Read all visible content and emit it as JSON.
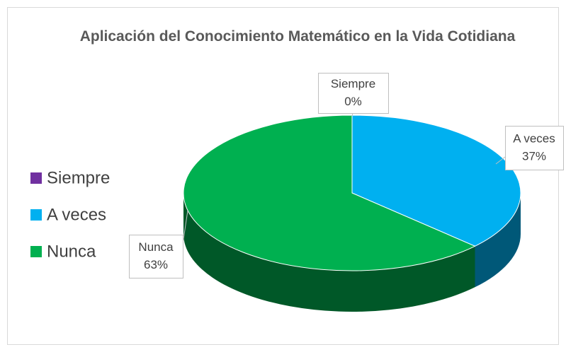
{
  "chart_data": {
    "type": "pie",
    "title": "Aplicación del Conocimiento Matemático en la Vida Cotidiana",
    "categories": [
      "Siempre",
      "A veces",
      "Nunca"
    ],
    "values": [
      0,
      37,
      63
    ],
    "value_labels": [
      "0%",
      "37%",
      "63%"
    ],
    "colors": [
      "#7030a0",
      "#00b0f0",
      "#00b050"
    ],
    "legend": "left"
  }
}
